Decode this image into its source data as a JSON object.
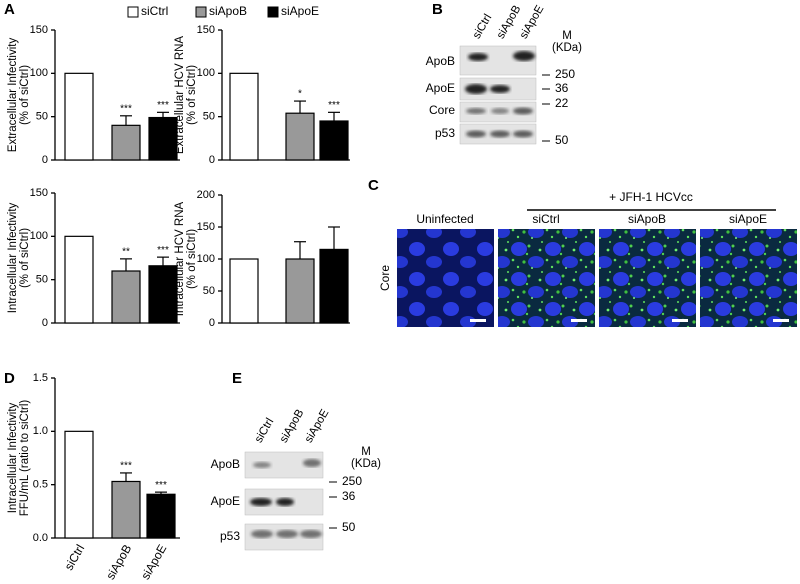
{
  "panels": [
    "A",
    "B",
    "C",
    "D",
    "E"
  ],
  "legend": {
    "names": [
      "siCtrl",
      "siApoB",
      "siApoE"
    ],
    "colors": [
      "#ffffff",
      "#999999",
      "#000000"
    ]
  },
  "chart_data": [
    {
      "type": "bar",
      "ylabel": [
        "Extracellular Infectivity",
        "(% of siCtrl)"
      ],
      "categories": [
        null,
        null,
        null
      ],
      "values": [
        100,
        40,
        49
      ],
      "errors": [
        null,
        11,
        6
      ],
      "annotations": [
        null,
        "***",
        "***"
      ],
      "ylim": [
        0,
        150
      ],
      "yticks": [
        0,
        50,
        100,
        150
      ]
    },
    {
      "type": "bar",
      "ylabel": [
        "Extracellular HCV RNA",
        "(% of siCtrl)"
      ],
      "categories": [
        null,
        null,
        null
      ],
      "values": [
        100,
        54,
        45
      ],
      "errors": [
        null,
        14,
        10
      ],
      "annotations": [
        null,
        "*",
        "***"
      ],
      "ylim": [
        0,
        150
      ],
      "yticks": [
        0,
        50,
        100,
        150
      ]
    },
    {
      "type": "bar",
      "ylabel": [
        "Intracellular Infectivity",
        "(% of siCtrl)"
      ],
      "categories": [
        null,
        null,
        null
      ],
      "values": [
        100,
        60,
        66
      ],
      "errors": [
        null,
        14,
        10
      ],
      "annotations": [
        null,
        "**",
        "***"
      ],
      "ylim": [
        0,
        150
      ],
      "yticks": [
        0,
        50,
        100,
        150
      ]
    },
    {
      "type": "bar",
      "ylabel": [
        "Intracellular HCV RNA",
        "(% of siCtrl)"
      ],
      "categories": [
        null,
        null,
        null
      ],
      "values": [
        100,
        100,
        115
      ],
      "errors": [
        null,
        27,
        35
      ],
      "annotations": [
        null,
        null,
        null
      ],
      "ylim": [
        0,
        200
      ],
      "yticks": [
        0,
        50,
        100,
        150,
        200
      ]
    },
    {
      "type": "bar",
      "ylabel": [
        "Intracellular Infectivity",
        "FFU/mL (ratio to siCtrl)"
      ],
      "categories": [
        "siCtrl",
        "siApoB",
        "siApoE"
      ],
      "values": [
        1.0,
        0.53,
        0.41
      ],
      "errors": [
        null,
        0.08,
        0.02
      ],
      "annotations": [
        null,
        "***",
        "***"
      ],
      "ylim": [
        0,
        1.5
      ],
      "yticks": [
        {
          "value": 0,
          "label": "0.0"
        },
        0.5,
        {
          "value": 1,
          "label": "1.0"
        },
        1.5
      ]
    }
  ],
  "blot_b": {
    "lanes": [
      "siCtrl",
      "siApoB",
      "siApoE"
    ],
    "marker_header": [
      "M",
      "(KDa)"
    ],
    "rows": [
      "ApoB",
      "ApoE",
      "Core",
      "p53"
    ],
    "markers": [
      250,
      36,
      22,
      50
    ]
  },
  "micrograph_c": {
    "group_label": "+ JFH-1 HCVcc",
    "columns": [
      "Uninfected",
      "siCtrl",
      "siApoB",
      "siApoE"
    ],
    "row_label": "Core"
  },
  "blot_e": {
    "lanes": [
      "siCtrl",
      "siApoB",
      "siApoE"
    ],
    "marker_header": [
      "M",
      "(KDa)"
    ],
    "rows": [
      "ApoB",
      "ApoE",
      "p53"
    ],
    "markers": [
      250,
      36,
      50
    ]
  }
}
